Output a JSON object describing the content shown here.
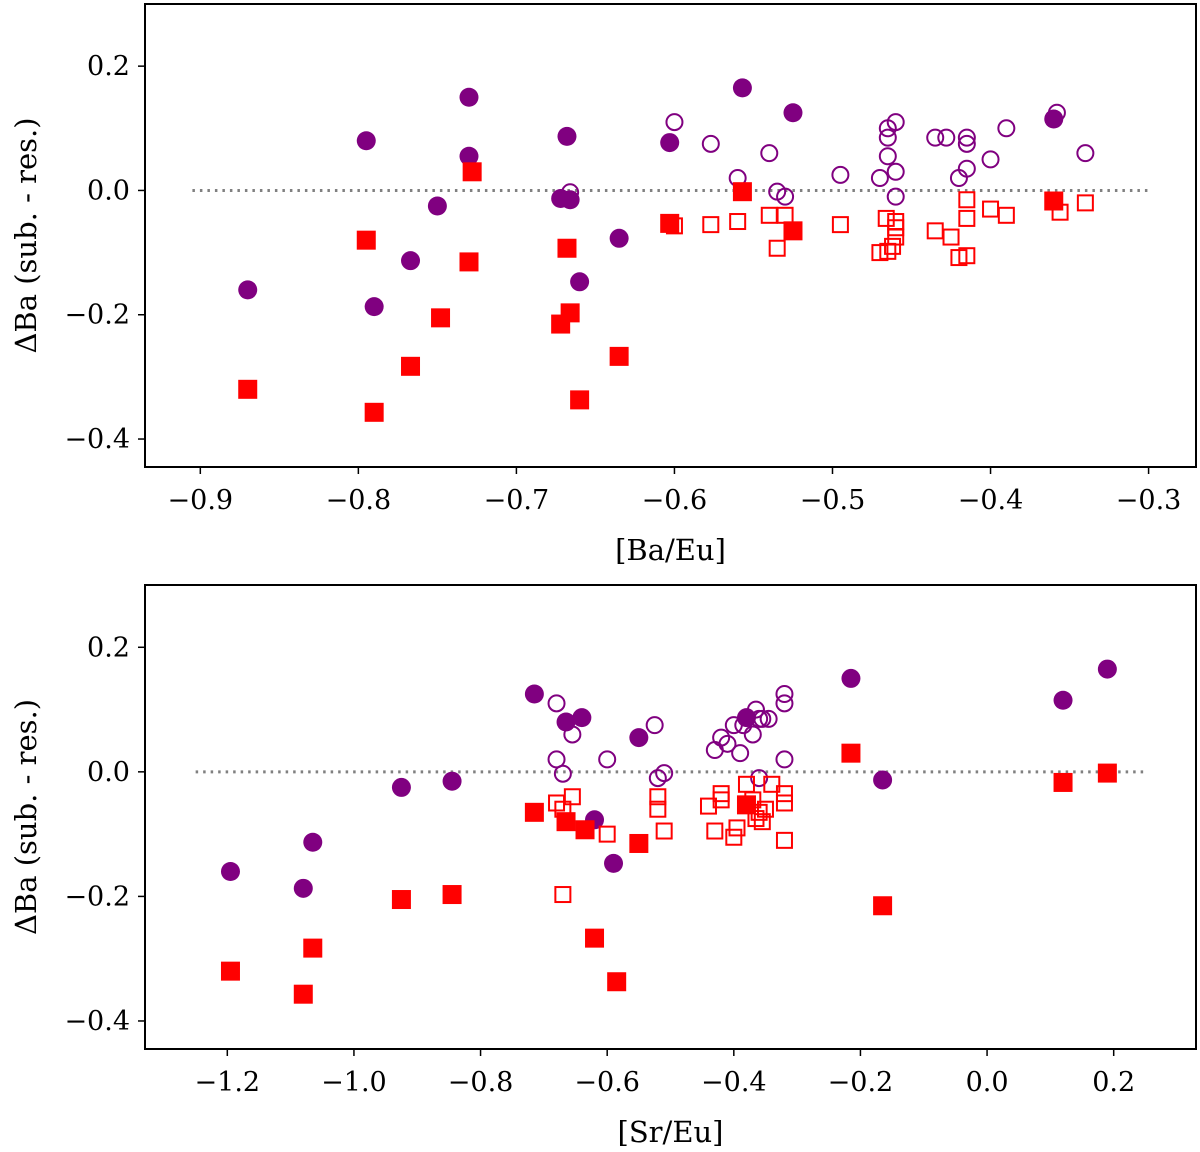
{
  "chart_data": [
    {
      "type": "scatter",
      "xlabel": "[Ba/Eu]",
      "ylabel": "ΔBa (sub. - res.)",
      "xlim": [
        -0.935,
        -0.27
      ],
      "ylim": [
        -0.445,
        0.3
      ],
      "xticks": [
        -0.9,
        -0.8,
        -0.7,
        -0.6,
        -0.5,
        -0.4,
        -0.3
      ],
      "xtick_labels": [
        "−0.9",
        "−0.8",
        "−0.7",
        "−0.6",
        "−0.5",
        "−0.4",
        "−0.3"
      ],
      "yticks": [
        0.2,
        0.0,
        -0.2,
        -0.4
      ],
      "ytick_labels": [
        "0.2",
        "0.0",
        "−0.2",
        "−0.4"
      ],
      "reference_line": {
        "y": 0.0,
        "x_range": [
          -0.905,
          -0.3
        ],
        "style": "dotted"
      },
      "series": [
        {
          "name": "filled circles",
          "marker": "circle",
          "filled": true,
          "color": "#800080",
          "x": [
            -0.87,
            -0.795,
            -0.79,
            -0.767,
            -0.75,
            -0.73,
            -0.73,
            -0.672,
            -0.668,
            -0.666,
            -0.66,
            -0.635,
            -0.603,
            -0.557,
            -0.525,
            -0.36
          ],
          "y": [
            -0.16,
            0.08,
            -0.187,
            -0.113,
            -0.025,
            0.15,
            0.055,
            -0.013,
            0.087,
            -0.015,
            -0.147,
            -0.077,
            0.077,
            0.165,
            0.125,
            0.115
          ]
        },
        {
          "name": "open circles",
          "marker": "circle",
          "filled": false,
          "color": "#800080",
          "x": [
            -0.666,
            -0.6,
            -0.577,
            -0.56,
            -0.54,
            -0.535,
            -0.53,
            -0.495,
            -0.47,
            -0.465,
            -0.465,
            -0.465,
            -0.46,
            -0.46,
            -0.46,
            -0.435,
            -0.428,
            -0.42,
            -0.415,
            -0.415,
            -0.415,
            -0.4,
            -0.39,
            -0.358,
            -0.34
          ],
          "y": [
            -0.003,
            0.11,
            0.075,
            0.02,
            0.06,
            -0.002,
            -0.01,
            0.025,
            0.02,
            0.055,
            0.085,
            0.1,
            0.11,
            0.03,
            -0.01,
            0.085,
            0.085,
            0.02,
            0.085,
            0.075,
            0.035,
            0.05,
            0.1,
            0.125,
            0.06
          ]
        },
        {
          "name": "filled squares",
          "marker": "square",
          "filled": true,
          "color": "#ff0000",
          "x": [
            -0.87,
            -0.795,
            -0.79,
            -0.767,
            -0.748,
            -0.73,
            -0.728,
            -0.672,
            -0.668,
            -0.666,
            -0.66,
            -0.635,
            -0.603,
            -0.557,
            -0.525,
            -0.36
          ],
          "y": [
            -0.32,
            -0.08,
            -0.357,
            -0.283,
            -0.205,
            -0.115,
            0.03,
            -0.215,
            -0.093,
            -0.197,
            -0.337,
            -0.267,
            -0.053,
            -0.002,
            -0.065,
            -0.017
          ]
        },
        {
          "name": "open squares",
          "marker": "square",
          "filled": false,
          "color": "#ff0000",
          "x": [
            -0.6,
            -0.577,
            -0.56,
            -0.54,
            -0.535,
            -0.53,
            -0.495,
            -0.47,
            -0.466,
            -0.465,
            -0.462,
            -0.46,
            -0.46,
            -0.46,
            -0.435,
            -0.425,
            -0.42,
            -0.415,
            -0.415,
            -0.415,
            -0.4,
            -0.39,
            -0.356,
            -0.34
          ],
          "y": [
            -0.057,
            -0.055,
            -0.05,
            -0.04,
            -0.093,
            -0.04,
            -0.055,
            -0.1,
            -0.045,
            -0.098,
            -0.09,
            -0.075,
            -0.05,
            -0.06,
            -0.065,
            -0.075,
            -0.108,
            -0.105,
            -0.045,
            -0.015,
            -0.03,
            -0.04,
            -0.035,
            -0.02
          ]
        }
      ]
    },
    {
      "type": "scatter",
      "xlabel": "[Sr/Eu]",
      "ylabel": "ΔBa (sub. - res.)",
      "xlim": [
        -1.33,
        0.33
      ],
      "ylim": [
        -0.445,
        0.3
      ],
      "xticks": [
        -1.2,
        -1.0,
        -0.8,
        -0.6,
        -0.4,
        -0.2,
        0.0,
        0.2
      ],
      "xtick_labels": [
        "−1.2",
        "−1.0",
        "−0.8",
        "−0.6",
        "−0.4",
        "−0.2",
        "0.0",
        "0.2"
      ],
      "yticks": [
        0.2,
        0.0,
        -0.2,
        -0.4
      ],
      "ytick_labels": [
        "0.2",
        "0.0",
        "−0.2",
        "−0.4"
      ],
      "reference_line": {
        "y": 0.0,
        "x_range": [
          -1.25,
          0.25
        ],
        "style": "dotted"
      },
      "series": [
        {
          "name": "filled circles",
          "marker": "circle",
          "filled": true,
          "color": "#800080",
          "x": [
            -1.195,
            -1.08,
            -1.065,
            -0.925,
            -0.845,
            -0.715,
            -0.665,
            -0.64,
            -0.62,
            -0.59,
            -0.55,
            -0.38,
            -0.215,
            -0.165,
            0.12,
            0.19
          ],
          "y": [
            -0.16,
            -0.187,
            -0.113,
            -0.025,
            -0.015,
            0.125,
            0.08,
            0.087,
            -0.077,
            -0.147,
            0.055,
            0.087,
            0.15,
            -0.013,
            0.115,
            0.165
          ]
        },
        {
          "name": "open circles",
          "marker": "circle",
          "filled": false,
          "color": "#800080",
          "x": [
            -0.68,
            -0.68,
            -0.67,
            -0.655,
            -0.6,
            -0.525,
            -0.52,
            -0.51,
            -0.43,
            -0.42,
            -0.41,
            -0.4,
            -0.39,
            -0.385,
            -0.37,
            -0.365,
            -0.36,
            -0.36,
            -0.355,
            -0.345,
            -0.32,
            -0.32,
            -0.32
          ],
          "y": [
            0.11,
            0.02,
            -0.003,
            0.06,
            0.02,
            0.075,
            -0.01,
            -0.002,
            0.035,
            0.055,
            0.045,
            0.075,
            0.03,
            0.075,
            0.06,
            0.1,
            0.085,
            -0.01,
            0.085,
            0.085,
            0.125,
            0.11,
            0.02
          ]
        },
        {
          "name": "filled squares",
          "marker": "square",
          "filled": true,
          "color": "#ff0000",
          "x": [
            -1.195,
            -1.08,
            -1.065,
            -0.925,
            -0.845,
            -0.715,
            -0.665,
            -0.635,
            -0.62,
            -0.585,
            -0.55,
            -0.38,
            -0.215,
            -0.165,
            0.12,
            0.19
          ],
          "y": [
            -0.32,
            -0.357,
            -0.283,
            -0.205,
            -0.197,
            -0.065,
            -0.08,
            -0.093,
            -0.267,
            -0.337,
            -0.115,
            -0.053,
            0.03,
            -0.215,
            -0.017,
            -0.002
          ]
        },
        {
          "name": "open squares",
          "marker": "square",
          "filled": false,
          "color": "#ff0000",
          "x": [
            -0.68,
            -0.67,
            -0.67,
            -0.655,
            -0.6,
            -0.52,
            -0.52,
            -0.51,
            -0.44,
            -0.43,
            -0.42,
            -0.42,
            -0.4,
            -0.395,
            -0.38,
            -0.37,
            -0.365,
            -0.36,
            -0.355,
            -0.35,
            -0.34,
            -0.32,
            -0.32,
            -0.32
          ],
          "y": [
            -0.05,
            -0.06,
            -0.197,
            -0.04,
            -0.1,
            -0.04,
            -0.06,
            -0.095,
            -0.055,
            -0.095,
            -0.035,
            -0.045,
            -0.105,
            -0.09,
            -0.02,
            -0.045,
            -0.075,
            -0.065,
            -0.08,
            -0.06,
            -0.02,
            -0.035,
            -0.05,
            -0.11
          ]
        }
      ]
    }
  ]
}
